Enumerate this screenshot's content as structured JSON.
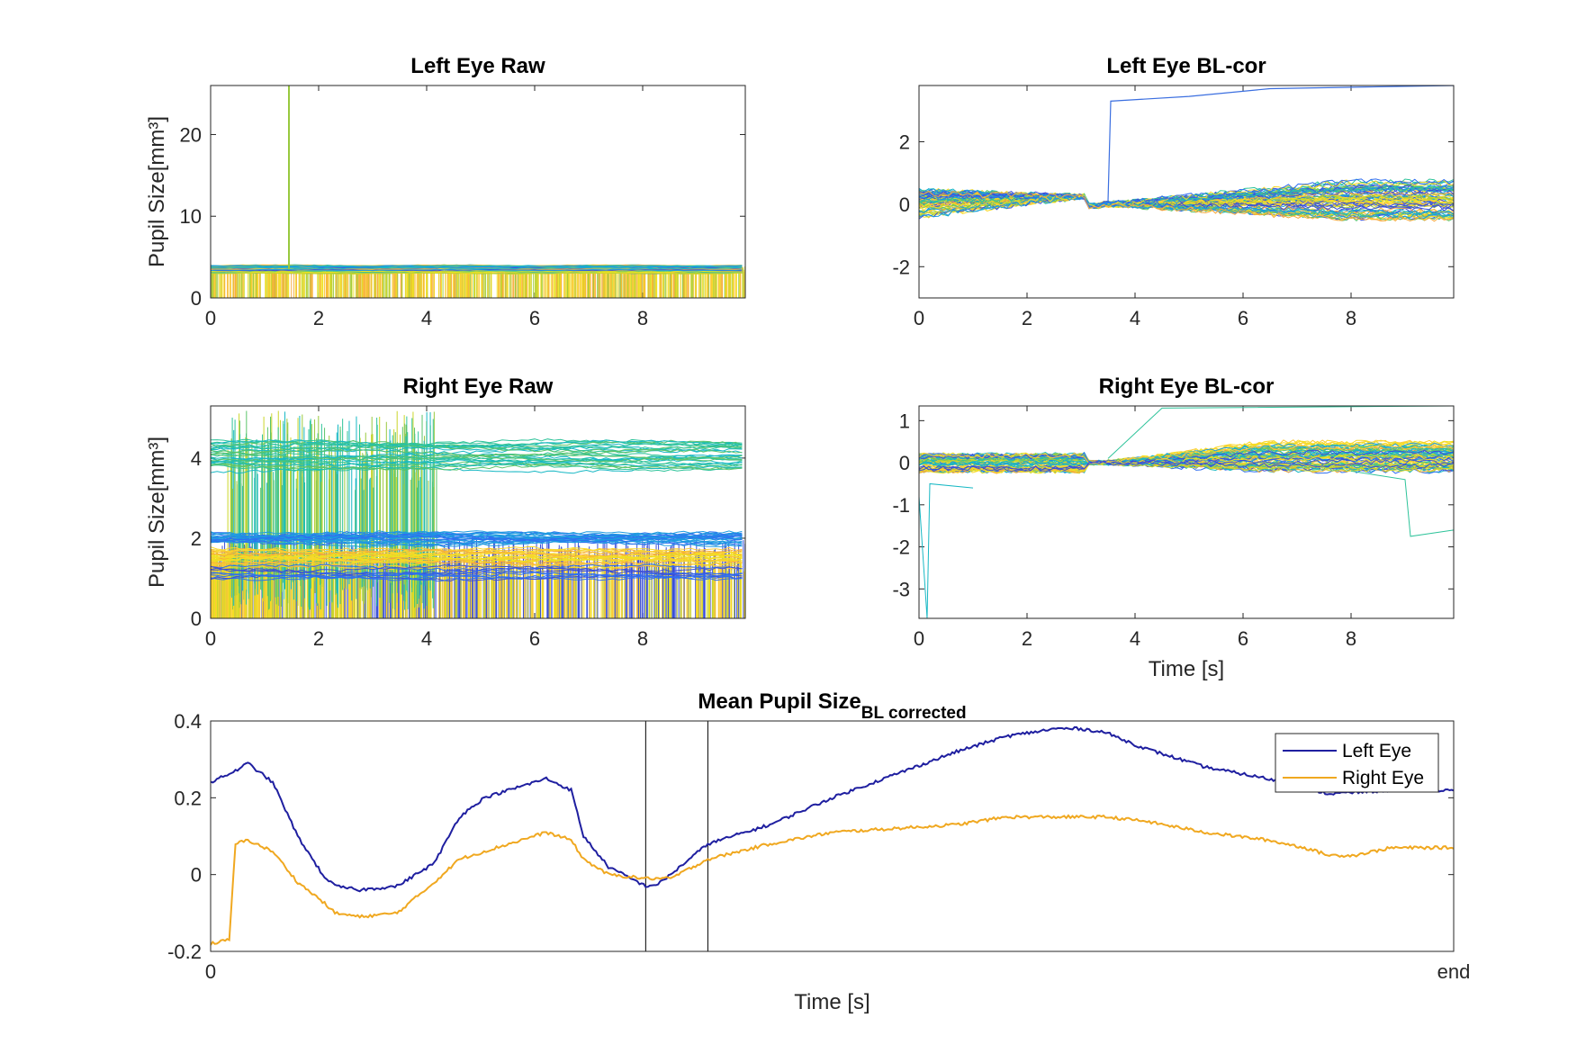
{
  "chart_data": [
    {
      "type": "line",
      "title": "Left Eye Raw",
      "ylabel": "Pupil Size[mm³]",
      "xlabel": "",
      "xlim": [
        0,
        9.9
      ],
      "ylim": [
        0,
        26
      ],
      "xticks": [
        "0",
        "2",
        "4",
        "6",
        "8"
      ],
      "yticks": [
        "0",
        "10",
        "20"
      ],
      "x_tick_values": [
        0,
        2,
        4,
        6,
        8
      ],
      "y_tick_values": [
        0,
        10,
        20
      ],
      "description_values": {
        "baseline_band": [
          0,
          4.2
        ],
        "spike": {
          "x": 1.45,
          "y": 26
        }
      },
      "grid": false
    },
    {
      "type": "line",
      "title": "Left Eye BL-cor",
      "ylabel": "",
      "xlabel": "",
      "xlim": [
        0,
        9.9
      ],
      "ylim": [
        -3,
        3.8
      ],
      "xticks": [
        "0",
        "2",
        "4",
        "6",
        "8"
      ],
      "yticks": [
        "-2",
        "0",
        "2"
      ],
      "x_tick_values": [
        0,
        2,
        4,
        6,
        8
      ],
      "y_tick_values": [
        -2,
        0,
        2
      ],
      "grid": false
    },
    {
      "type": "line",
      "title": "Right Eye Raw",
      "ylabel": "Pupil Size[mm³]",
      "xlabel": "",
      "xlim": [
        0,
        9.9
      ],
      "ylim": [
        0,
        5.3
      ],
      "xticks": [
        "0",
        "2",
        "4",
        "6",
        "8"
      ],
      "yticks": [
        "0",
        "2",
        "4"
      ],
      "x_tick_values": [
        0,
        2,
        4,
        6,
        8
      ],
      "y_tick_values": [
        0,
        2,
        4
      ],
      "grid": false
    },
    {
      "type": "line",
      "title": "Right Eye BL-cor",
      "ylabel": "",
      "xlabel": "Time [s]",
      "xlim": [
        0,
        9.9
      ],
      "ylim": [
        -3.7,
        1.35
      ],
      "xticks": [
        "0",
        "2",
        "4",
        "6",
        "8"
      ],
      "yticks": [
        "-3",
        "-2",
        "-1",
        "0",
        "1"
      ],
      "x_tick_values": [
        0,
        2,
        4,
        6,
        8
      ],
      "y_tick_values": [
        -3,
        -2,
        -1,
        0,
        1
      ],
      "grid": false
    },
    {
      "type": "line",
      "title": "Mean Pupil Size",
      "title_subscript": "BL corrected",
      "ylabel": "",
      "xlabel": "Time [s]",
      "xlim": [
        0,
        1
      ],
      "ylim": [
        -0.2,
        0.4
      ],
      "xticks": [
        "0",
        "end"
      ],
      "yticks": [
        "-0.2",
        "0",
        "0.2",
        "0.4"
      ],
      "x_tick_values": [
        0,
        1
      ],
      "y_tick_values": [
        -0.2,
        0,
        0.2,
        0.4
      ],
      "vlines": [
        0.35,
        0.4
      ],
      "legend_position": "top-right",
      "grid": false,
      "series": [
        {
          "name": "Left Eye",
          "color": "#1f1fa0",
          "x": [
            0,
            0.02,
            0.03,
            0.05,
            0.07,
            0.09,
            0.1,
            0.12,
            0.15,
            0.18,
            0.2,
            0.22,
            0.25,
            0.27,
            0.29,
            0.3,
            0.32,
            0.35,
            0.36,
            0.37,
            0.4,
            0.45,
            0.5,
            0.55,
            0.6,
            0.64,
            0.68,
            0.7,
            0.72,
            0.75,
            0.8,
            0.85,
            0.9,
            0.95,
            1.0
          ],
          "values": [
            0.24,
            0.27,
            0.29,
            0.24,
            0.1,
            0.0,
            -0.03,
            -0.04,
            -0.03,
            0.03,
            0.15,
            0.2,
            0.23,
            0.25,
            0.22,
            0.1,
            0.02,
            -0.03,
            -0.025,
            0.0,
            0.08,
            0.13,
            0.2,
            0.26,
            0.32,
            0.36,
            0.38,
            0.38,
            0.37,
            0.33,
            0.28,
            0.25,
            0.21,
            0.22,
            0.22
          ]
        },
        {
          "name": "Right Eye",
          "color": "#f0a820",
          "x": [
            0,
            0.015,
            0.02,
            0.03,
            0.05,
            0.07,
            0.09,
            0.1,
            0.12,
            0.15,
            0.18,
            0.2,
            0.22,
            0.25,
            0.27,
            0.29,
            0.3,
            0.32,
            0.35,
            0.37,
            0.4,
            0.45,
            0.5,
            0.55,
            0.6,
            0.64,
            0.68,
            0.72,
            0.75,
            0.8,
            0.85,
            0.88,
            0.9,
            0.92,
            0.95,
            1.0
          ],
          "values": [
            -0.18,
            -0.17,
            0.08,
            0.09,
            0.06,
            -0.02,
            -0.07,
            -0.1,
            -0.11,
            -0.1,
            -0.02,
            0.04,
            0.06,
            0.09,
            0.11,
            0.09,
            0.04,
            0.0,
            -0.01,
            -0.01,
            0.04,
            0.08,
            0.11,
            0.12,
            0.13,
            0.15,
            0.15,
            0.15,
            0.14,
            0.11,
            0.09,
            0.07,
            0.05,
            0.05,
            0.07,
            0.07
          ]
        }
      ]
    }
  ],
  "palette": [
    "#3b4fd9",
    "#2f6ef0",
    "#1e9be0",
    "#17b8c4",
    "#2ec39a",
    "#5cc46a",
    "#98c93f",
    "#cbd62a",
    "#f0e21e",
    "#f8d82a",
    "#fbc938",
    "#f7a93a"
  ]
}
